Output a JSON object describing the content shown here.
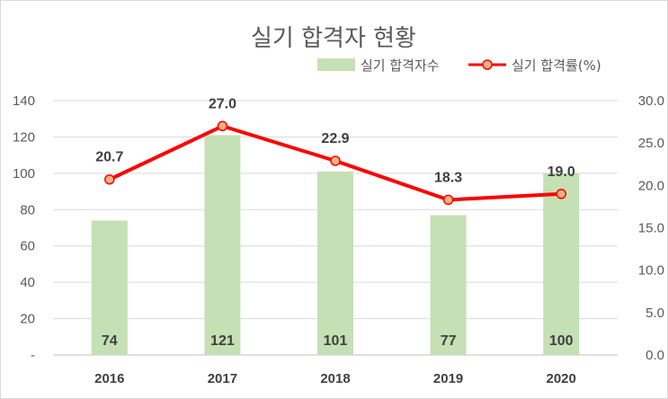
{
  "chart_data": {
    "type": "bar+line",
    "title": "실기 합격자 현황",
    "categories": [
      "2016",
      "2017",
      "2018",
      "2019",
      "2020"
    ],
    "series": [
      {
        "name": "실기 합격자수",
        "type": "bar",
        "axis": "left",
        "values": [
          74,
          121,
          101,
          77,
          100
        ],
        "color": "#c5e0b4"
      },
      {
        "name": "실기 합격률(%)",
        "type": "line",
        "axis": "right",
        "values": [
          20.7,
          27.0,
          22.9,
          18.3,
          19.0
        ],
        "color": "#ff0000",
        "marker_color": "#f4b183"
      }
    ],
    "y_left": {
      "min": 0,
      "max": 140,
      "ticks": [
        "-",
        "20",
        "40",
        "60",
        "80",
        "100",
        "120",
        "140"
      ]
    },
    "y_right": {
      "min": 0,
      "max": 30,
      "ticks": [
        "0.0",
        "5.0",
        "10.0",
        "15.0",
        "20.0",
        "25.0",
        "30.0"
      ]
    },
    "bar_labels": [
      "74",
      "121",
      "101",
      "77",
      "100"
    ],
    "line_labels": [
      "20.7",
      "27.0",
      "22.9",
      "18.3",
      "19.0"
    ],
    "grid": true,
    "legend_position": "top-right"
  }
}
